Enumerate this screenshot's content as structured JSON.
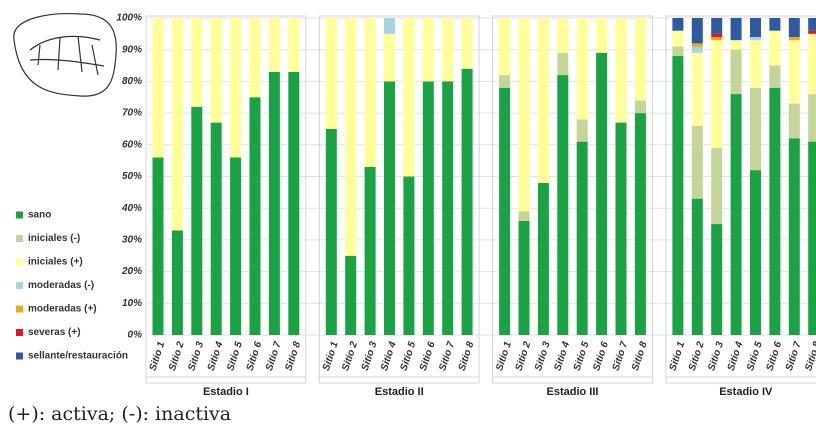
{
  "chart_data": {
    "type": "stacked-bar",
    "groups": [
      "Estadio I",
      "Estadio II",
      "Estadio III",
      "Estadio IV"
    ],
    "categories": [
      "Sitio 1",
      "Sitio 2",
      "Sitio 3",
      "Sitio 4",
      "Sitio 5",
      "Sitio 6",
      "Sitio 7",
      "Sitio 8",
      "Sitio 1",
      "Sitio 2",
      "Sitio 3",
      "Sitio 4",
      "Sitio 5",
      "Sitio 6",
      "Sitio 7",
      "Sitio 8",
      "Sitio 1",
      "Sitio 2",
      "Sitio 3",
      "Sitio 4",
      "Sitio 5",
      "Sitio 6",
      "Sitio 7",
      "Sitio 8",
      "Sitio 1",
      "Sitio 2",
      "Sitio 3",
      "Sitio 4",
      "Sitio 5",
      "Sitio 6",
      "Sitio 7",
      "Sitio 8"
    ],
    "series": [
      {
        "name": "sano",
        "color": "#1aa245",
        "values": [
          56,
          33,
          72,
          67,
          56,
          75,
          83,
          83,
          65,
          25,
          53,
          80,
          50,
          80,
          80,
          84,
          78,
          36,
          48,
          82,
          61,
          89,
          67,
          70,
          88,
          43,
          35,
          76,
          52,
          78,
          62,
          61
        ]
      },
      {
        "name": "iniciales (-)",
        "color": "#c5d59a",
        "values": [
          0,
          0,
          0,
          0,
          0,
          0,
          0,
          0,
          0,
          0,
          0,
          0,
          0,
          0,
          0,
          0,
          4,
          3,
          0,
          7,
          7,
          0,
          0,
          4,
          3,
          23,
          24,
          14,
          26,
          7,
          11,
          15
        ]
      },
      {
        "name": "iniciales (+)",
        "color": "#ffff99",
        "values": [
          44,
          67,
          28,
          33,
          44,
          25,
          17,
          17,
          35,
          75,
          47,
          15,
          50,
          20,
          20,
          16,
          18,
          61,
          52,
          11,
          32,
          11,
          33,
          26,
          5,
          23,
          34,
          3,
          15,
          11,
          20,
          19
        ]
      },
      {
        "name": "moderadas (-)",
        "color": "#a6d4e0",
        "values": [
          0,
          0,
          0,
          0,
          0,
          0,
          0,
          0,
          0,
          0,
          0,
          5,
          0,
          0,
          0,
          0,
          0,
          0,
          0,
          0,
          0,
          0,
          0,
          0,
          0,
          2,
          0,
          0,
          1,
          0,
          0,
          0
        ]
      },
      {
        "name": "moderadas (+)",
        "color": "#f0a818",
        "values": [
          0,
          0,
          0,
          0,
          0,
          0,
          0,
          0,
          0,
          0,
          0,
          0,
          0,
          0,
          0,
          0,
          0,
          0,
          0,
          0,
          0,
          0,
          0,
          0,
          0,
          1,
          1,
          0,
          0,
          0,
          1,
          0
        ]
      },
      {
        "name": "severas (+)",
        "color": "#e8141a",
        "values": [
          0,
          0,
          0,
          0,
          0,
          0,
          0,
          0,
          0,
          0,
          0,
          0,
          0,
          0,
          0,
          0,
          0,
          0,
          0,
          0,
          0,
          0,
          0,
          0,
          0,
          0,
          1,
          0,
          0,
          0,
          0,
          1
        ]
      },
      {
        "name": "sellante/restauración",
        "color": "#2e5aa0",
        "values": [
          0,
          0,
          0,
          0,
          0,
          0,
          0,
          0,
          0,
          0,
          0,
          0,
          0,
          0,
          0,
          0,
          0,
          0,
          0,
          0,
          0,
          0,
          0,
          0,
          4,
          8,
          5,
          7,
          6,
          4,
          6,
          4
        ]
      }
    ],
    "ylim": [
      0,
      100
    ],
    "yticks": [
      {
        "value": 0,
        "label": "0%"
      },
      {
        "value": 10,
        "label": "10%"
      },
      {
        "value": 20,
        "label": "20%"
      },
      {
        "value": 30,
        "label": "30%"
      },
      {
        "value": 40,
        "label": "40%"
      },
      {
        "value": 50,
        "label": "50%"
      },
      {
        "value": 60,
        "label": "60%"
      },
      {
        "value": 70,
        "label": "70%"
      },
      {
        "value": 80,
        "label": "80%"
      },
      {
        "value": 90,
        "label": "90%"
      },
      {
        "value": 100,
        "label": "100%"
      }
    ],
    "grid": true,
    "caption": "(+): activa; (-): inactiva"
  }
}
